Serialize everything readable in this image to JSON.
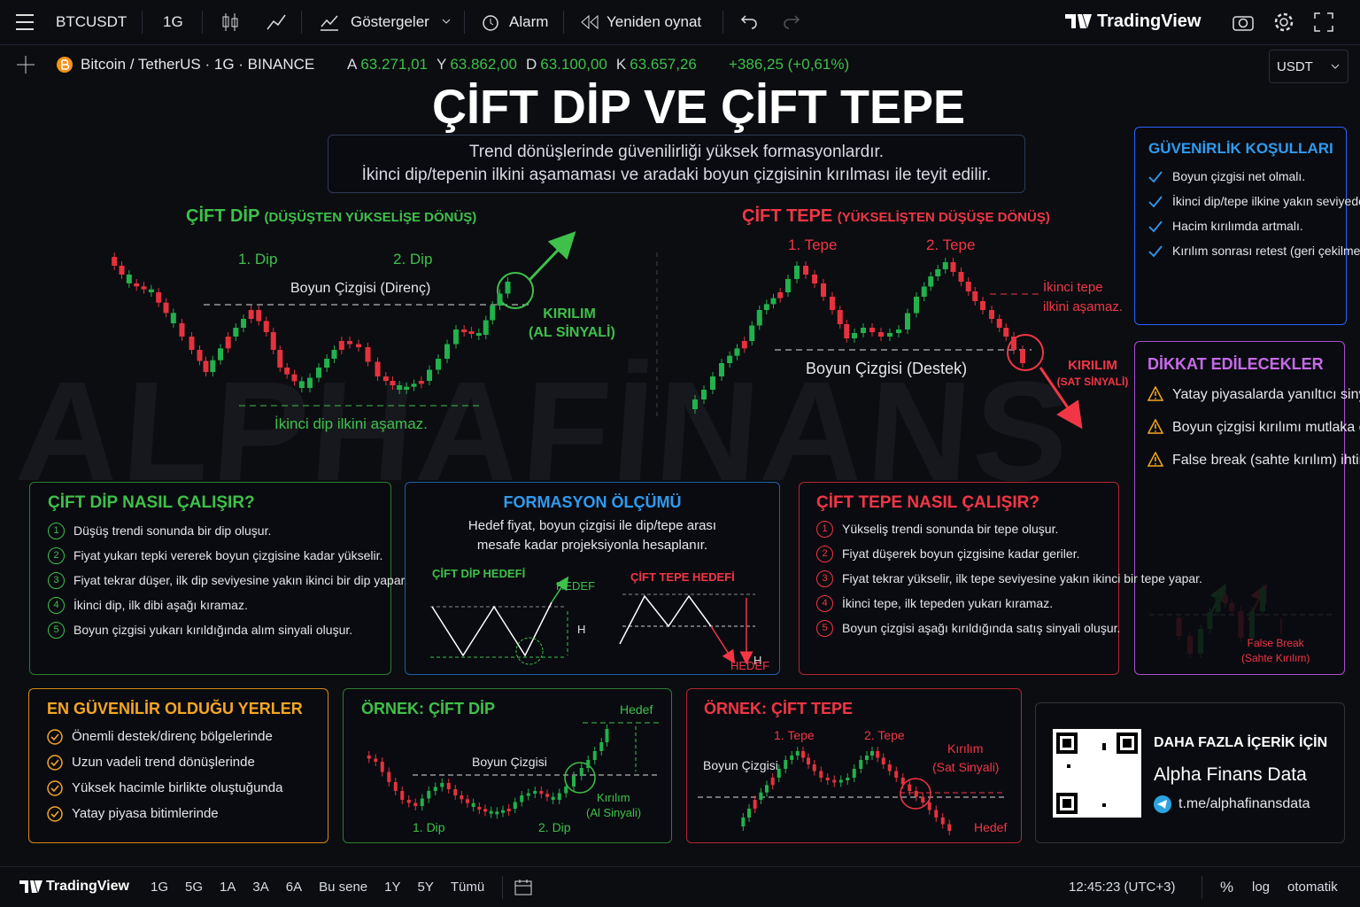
{
  "top_bar": {
    "symbol": "BTCUSDT",
    "interval": "1G",
    "indicators": "Göstergeler",
    "alarm": "Alarm",
    "replay": "Yeniden oynat",
    "brand": "TradingView"
  },
  "legend": {
    "pair": "Bitcoin / TetherUS · 1G · BINANCE",
    "ohlc": [
      {
        "key": "A",
        "value": "63.271,01"
      },
      {
        "key": "Y",
        "value": "63.862,00"
      },
      {
        "key": "D",
        "value": "63.100,00"
      },
      {
        "key": "K",
        "value": "63.657,26"
      }
    ],
    "change": "+386,25 (+0,61%)",
    "currency": "USDT"
  },
  "watermark": "ALPHAFİNANS",
  "title": "ÇİFT DİP VE ÇİFT TEPE",
  "subtitle": [
    "Trend dönüşlerinde güvenilirliği yüksek formasyonlardır.",
    "İkinci dip/tepenin ilkini aşamaması ve aradaki boyun çizgisinin kırılması ile teyit edilir."
  ],
  "double_bottom": {
    "heading": "ÇİFT DİP",
    "subheading": "(DÜŞÜŞTEN YÜKSELİŞE DÖNÜŞ)",
    "dip1": "1. Dip",
    "dip2": "2. Dip",
    "neckline": "Boyun Çizgisi (Direnç)",
    "breakout": "KIRILIM",
    "signal": "(AL SİNYALİ)",
    "note": "İkinci dip ilkini aşamaz."
  },
  "double_top": {
    "heading": "ÇİFT TEPE",
    "subheading": "(YÜKSELİŞTEN DÜŞÜŞE DÖNÜŞ)",
    "top1": "1. Tepe",
    "top2": "2. Tepe",
    "neckline": "Boyun Çizgisi (Destek)",
    "breakout": "KIRILIM",
    "signal": "(SAT SİNYALİ)",
    "note": "İkinci tepe ilkini aşamaz."
  },
  "reliability": {
    "title": "GÜVENİRLİK KOŞULLARI",
    "items": [
      "Boyun çizgisi net olmalı.",
      "İkinci dip/tepe ilkine yakın seviyede oluşmalı.",
      "Hacim kırılımda artmalı.",
      "Kırılım sonrası retest (geri çekilme) güveni artırır."
    ]
  },
  "cautions": {
    "title": "DİKKAT EDİLECEKLER",
    "items": [
      "Yatay piyasalarda yanıltıcı sinyaller oluşabilir.",
      "Boyun çizgisi kırılımı mutlaka desteklenmelidir.",
      "False break (sahte kırılım) ihtimaline karşı teyit beklenmelidir."
    ],
    "false_break": "False Break",
    "false_break_tr": "(Sahte Kırılım)"
  },
  "how_bottom": {
    "title": "ÇİFT DİP NASIL ÇALIŞIR?",
    "steps": [
      {
        "no": "1",
        "text": "Düşüş trendi sonunda bir dip oluşur."
      },
      {
        "no": "2",
        "text": "Fiyat yukarı tepki vererek boyun çizgisine kadar yükselir."
      },
      {
        "no": "3",
        "text": "Fiyat tekrar düşer, ilk dip seviyesine yakın ikinci bir dip yapar."
      },
      {
        "no": "4",
        "text": "İkinci dip, ilk dibi aşağı kıramaz."
      },
      {
        "no": "5",
        "text": "Boyun çizgisi yukarı kırıldığında alım sinyali oluşur."
      }
    ]
  },
  "measurement": {
    "title": "FORMASYON ÖLÇÜMÜ",
    "description": "Hedef fiyat, boyun çizgisi ile dip/tepe arası mesafe kadar projeksiyonla hesaplanır.",
    "bottom_label": "ÇİFT DİP HEDEFİ",
    "bottom_target": "HEDEF",
    "bottom_h": "H",
    "top_label": "ÇİFT TEPE HEDEFİ",
    "top_target": "HEDEF",
    "top_h": "H"
  },
  "how_top": {
    "title": "ÇİFT TEPE NASIL ÇALIŞIR?",
    "steps": [
      {
        "no": "1",
        "text": "Yükseliş trendi sonunda bir tepe oluşur."
      },
      {
        "no": "2",
        "text": "Fiyat düşerek boyun çizgisine kadar geriler."
      },
      {
        "no": "3",
        "text": "Fiyat tekrar yükselir, ilk tepe seviyesine yakın ikinci bir tepe yapar."
      },
      {
        "no": "4",
        "text": "İkinci tepe, ilk tepeden yukarı kıramaz."
      },
      {
        "no": "5",
        "text": "Boyun çizgisi aşağı kırıldığında satış sinyali oluşur."
      }
    ]
  },
  "best_places": {
    "title": "EN GÜVENİLİR OLDUĞU YERLER",
    "items": [
      "Önemli destek/direnç bölgelerinde",
      "Uzun vadeli trend dönüşlerinde",
      "Yüksek hacimle birlikte oluştuğunda",
      "Yatay piyasa bitimlerinde"
    ]
  },
  "example_bottom": {
    "title": "ÖRNEK: ÇİFT DİP",
    "target": "Hedef",
    "neckline": "Boyun Çizgisi",
    "dip1": "1. Dip",
    "dip2": "2. Dip",
    "breakout": "Kırılım",
    "signal": "(Al Sinyali)"
  },
  "example_top": {
    "title": "ÖRNEK: ÇİFT TEPE",
    "top1": "1. Tepe",
    "top2": "2. Tepe",
    "neckline": "Boyun Çizgisi",
    "breakout": "Kırılım",
    "signal": "(Sat Sinyali)",
    "target": "Hedef"
  },
  "promo": {
    "heading": "DAHA FAZLA İÇERİK İÇİN",
    "name": "Alpha Finans Data",
    "link": "t.me/alphafinansdata"
  },
  "bottom_bar": {
    "brand": "TradingView",
    "ranges": [
      "1G",
      "5G",
      "1A",
      "3A",
      "6A",
      "Bu sene",
      "1Y",
      "5Y",
      "Tümü"
    ],
    "time": "12:45:23 (UTC+3)",
    "percent": "%",
    "log": "log",
    "auto": "otomatik"
  }
}
